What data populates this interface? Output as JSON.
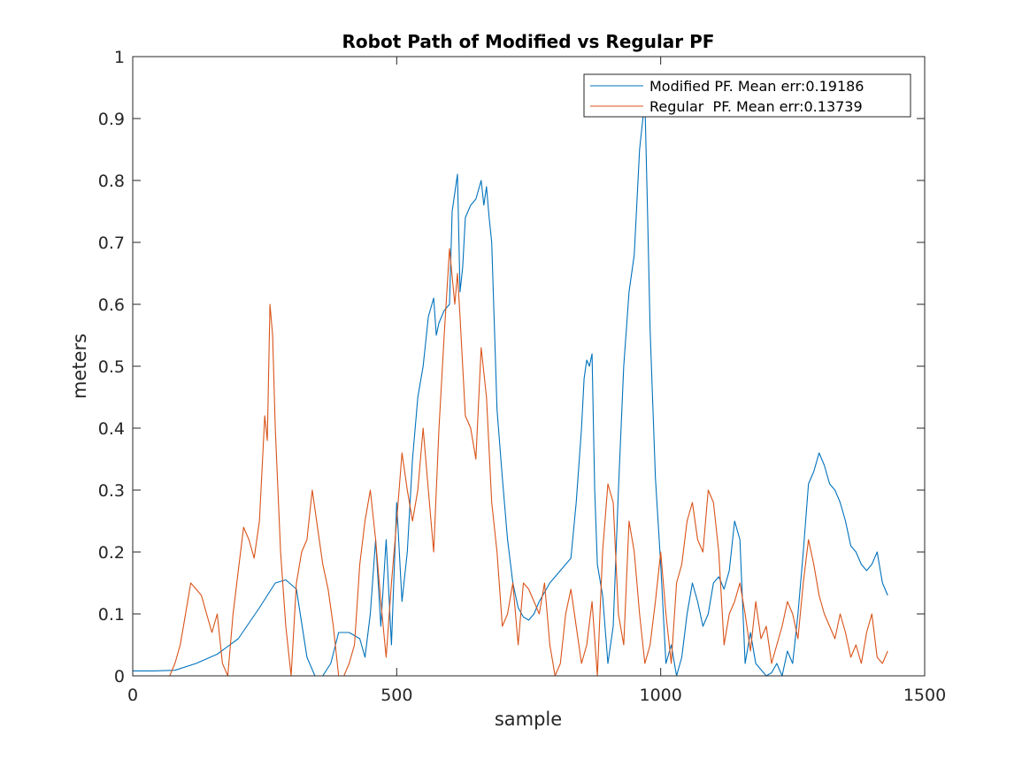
{
  "chart_data": {
    "type": "line",
    "title": "Robot Path of Modified vs Regular PF",
    "xlabel": "sample",
    "ylabel": "meters",
    "xlim": [
      0,
      1500
    ],
    "ylim": [
      0,
      1
    ],
    "xticks": [
      0,
      500,
      1000,
      1500
    ],
    "yticks": [
      0,
      0.1,
      0.2,
      0.3,
      0.4,
      0.5,
      0.6,
      0.7,
      0.8,
      0.9,
      1
    ],
    "xtick_labels": [
      "0",
      "500",
      "1000",
      "1500"
    ],
    "ytick_labels": [
      "0",
      "0.1",
      "0.2",
      "0.3",
      "0.4",
      "0.5",
      "0.6",
      "0.7",
      "0.8",
      "0.9",
      "1"
    ],
    "grid": false,
    "legend_location": "top-right",
    "series": [
      {
        "name": "Modified PF. Mean err:0.19186",
        "color": "#0072BD",
        "x": [
          0,
          40,
          80,
          120,
          160,
          200,
          240,
          270,
          290,
          310,
          330,
          345,
          360,
          375,
          390,
          410,
          430,
          440,
          450,
          460,
          470,
          480,
          490,
          500,
          510,
          520,
          530,
          540,
          550,
          560,
          570,
          575,
          580,
          590,
          600,
          605,
          610,
          615,
          620,
          625,
          630,
          640,
          650,
          660,
          665,
          670,
          675,
          680,
          690,
          700,
          710,
          720,
          730,
          740,
          750,
          760,
          770,
          790,
          810,
          830,
          840,
          850,
          855,
          860,
          865,
          870,
          875,
          880,
          890,
          900,
          910,
          920,
          930,
          940,
          950,
          960,
          965,
          970,
          975,
          980,
          990,
          1000,
          1010,
          1020,
          1030,
          1040,
          1050,
          1060,
          1070,
          1080,
          1090,
          1100,
          1110,
          1120,
          1130,
          1140,
          1150,
          1160,
          1170,
          1180,
          1190,
          1200,
          1210,
          1220,
          1230,
          1240,
          1250,
          1260,
          1270,
          1280,
          1290,
          1300,
          1310,
          1320,
          1330,
          1340,
          1350,
          1360,
          1370,
          1380,
          1390,
          1400,
          1410,
          1420,
          1430
        ],
        "y": [
          0.008,
          0.008,
          0.009,
          0.02,
          0.035,
          0.06,
          0.11,
          0.15,
          0.155,
          0.14,
          0.03,
          0.0,
          0.0,
          0.02,
          0.07,
          0.07,
          0.06,
          0.03,
          0.1,
          0.22,
          0.08,
          0.22,
          0.05,
          0.28,
          0.12,
          0.2,
          0.35,
          0.45,
          0.5,
          0.58,
          0.61,
          0.55,
          0.57,
          0.59,
          0.6,
          0.75,
          0.78,
          0.81,
          0.62,
          0.66,
          0.74,
          0.76,
          0.77,
          0.8,
          0.76,
          0.79,
          0.74,
          0.7,
          0.43,
          0.32,
          0.22,
          0.15,
          0.11,
          0.095,
          0.09,
          0.1,
          0.12,
          0.15,
          0.17,
          0.19,
          0.28,
          0.4,
          0.48,
          0.51,
          0.5,
          0.52,
          0.3,
          0.18,
          0.13,
          0.02,
          0.08,
          0.3,
          0.5,
          0.62,
          0.68,
          0.85,
          0.89,
          0.93,
          0.75,
          0.56,
          0.32,
          0.18,
          0.02,
          0.05,
          0.0,
          0.03,
          0.1,
          0.15,
          0.12,
          0.08,
          0.1,
          0.15,
          0.16,
          0.14,
          0.17,
          0.25,
          0.22,
          0.02,
          0.07,
          0.02,
          0.01,
          0.0,
          0.005,
          0.02,
          0.0,
          0.04,
          0.02,
          0.1,
          0.2,
          0.31,
          0.33,
          0.36,
          0.34,
          0.31,
          0.3,
          0.28,
          0.25,
          0.21,
          0.2,
          0.18,
          0.17,
          0.18,
          0.2,
          0.15,
          0.13
        ]
      },
      {
        "name": "Regular  PF. Mean err:0.13739",
        "color": "#D95319",
        "x": [
          0,
          70,
          80,
          90,
          100,
          110,
          120,
          130,
          140,
          150,
          160,
          170,
          180,
          190,
          200,
          210,
          220,
          230,
          240,
          250,
          255,
          260,
          265,
          270,
          280,
          290,
          300,
          310,
          320,
          330,
          340,
          350,
          360,
          370,
          380,
          390,
          400,
          410,
          420,
          430,
          440,
          450,
          460,
          470,
          480,
          490,
          500,
          510,
          520,
          530,
          540,
          550,
          560,
          570,
          580,
          590,
          600,
          610,
          615,
          620,
          630,
          640,
          650,
          660,
          670,
          680,
          690,
          700,
          710,
          720,
          730,
          740,
          750,
          760,
          770,
          780,
          790,
          800,
          810,
          820,
          830,
          840,
          850,
          860,
          870,
          880,
          890,
          900,
          910,
          920,
          930,
          940,
          950,
          960,
          970,
          980,
          990,
          1000,
          1010,
          1020,
          1030,
          1040,
          1050,
          1060,
          1070,
          1080,
          1090,
          1100,
          1110,
          1120,
          1130,
          1140,
          1150,
          1160,
          1170,
          1180,
          1190,
          1200,
          1210,
          1220,
          1230,
          1240,
          1250,
          1260,
          1270,
          1280,
          1290,
          1300,
          1310,
          1320,
          1330,
          1340,
          1350,
          1360,
          1370,
          1380,
          1390,
          1400,
          1410,
          1420,
          1430
        ],
        "y": [
          0.0,
          0.0,
          0.02,
          0.05,
          0.1,
          0.15,
          0.14,
          0.13,
          0.1,
          0.07,
          0.1,
          0.02,
          0.0,
          0.1,
          0.17,
          0.24,
          0.22,
          0.19,
          0.25,
          0.42,
          0.38,
          0.6,
          0.55,
          0.4,
          0.2,
          0.08,
          0.0,
          0.15,
          0.2,
          0.22,
          0.3,
          0.24,
          0.18,
          0.14,
          0.08,
          0.0,
          0.0,
          0.02,
          0.05,
          0.18,
          0.25,
          0.3,
          0.22,
          0.12,
          0.03,
          0.15,
          0.25,
          0.36,
          0.3,
          0.25,
          0.3,
          0.4,
          0.3,
          0.2,
          0.4,
          0.55,
          0.69,
          0.6,
          0.65,
          0.58,
          0.42,
          0.4,
          0.35,
          0.53,
          0.45,
          0.28,
          0.2,
          0.08,
          0.1,
          0.15,
          0.05,
          0.15,
          0.14,
          0.12,
          0.1,
          0.15,
          0.05,
          0.0,
          0.02,
          0.1,
          0.14,
          0.08,
          0.02,
          0.05,
          0.12,
          0.0,
          0.2,
          0.31,
          0.28,
          0.1,
          0.05,
          0.25,
          0.2,
          0.1,
          0.02,
          0.05,
          0.12,
          0.2,
          0.1,
          0.02,
          0.15,
          0.18,
          0.25,
          0.28,
          0.22,
          0.2,
          0.3,
          0.28,
          0.2,
          0.05,
          0.1,
          0.12,
          0.15,
          0.1,
          0.04,
          0.12,
          0.06,
          0.08,
          0.02,
          0.05,
          0.08,
          0.12,
          0.1,
          0.06,
          0.15,
          0.22,
          0.18,
          0.13,
          0.1,
          0.08,
          0.06,
          0.1,
          0.07,
          0.03,
          0.05,
          0.02,
          0.07,
          0.1,
          0.03,
          0.02,
          0.04
        ]
      }
    ]
  }
}
